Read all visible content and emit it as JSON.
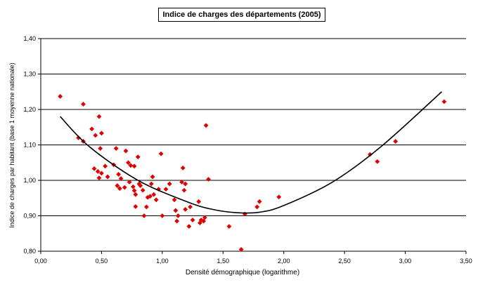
{
  "chart_data": {
    "type": "scatter",
    "title": "Indice de charges des départements (2005)",
    "xlabel": "Densité démographique (logarithme)",
    "ylabel": "Indice de charges par habitant (base 1 moyenne nationale)",
    "xlim": [
      0,
      3.5
    ],
    "ylim": [
      0.8,
      1.4
    ],
    "x_ticks": [
      "0,00",
      "0,50",
      "1,00",
      "1,50",
      "2,00",
      "2,50",
      "3,00",
      "3,50"
    ],
    "y_ticks": [
      "0,80",
      "0,90",
      "1,00",
      "1,10",
      "1,20",
      "1,30",
      "1,40"
    ],
    "grid": "horizontal",
    "point_color": "#e00000",
    "trend_color": "#000000",
    "trend_type": "polynomial (order 2)",
    "trend_range": [
      0.16,
      3.3
    ],
    "trend": [
      [
        0.16,
        1.18
      ],
      [
        0.4,
        1.095
      ],
      [
        0.8,
        1.0
      ],
      [
        1.2,
        0.94
      ],
      [
        1.4,
        0.919
      ],
      [
        1.6,
        0.909
      ],
      [
        1.8,
        0.91
      ],
      [
        2.0,
        0.929
      ],
      [
        2.4,
        0.995
      ],
      [
        2.8,
        1.095
      ],
      [
        3.3,
        1.25
      ]
    ],
    "points": [
      [
        0.16,
        1.237
      ],
      [
        0.35,
        1.215
      ],
      [
        0.31,
        1.12
      ],
      [
        0.35,
        1.11
      ],
      [
        0.42,
        1.145
      ],
      [
        0.45,
        1.127
      ],
      [
        0.48,
        1.18
      ],
      [
        0.5,
        1.133
      ],
      [
        0.49,
        1.09
      ],
      [
        0.44,
        1.033
      ],
      [
        0.47,
        1.025
      ],
      [
        0.5,
        1.02
      ],
      [
        0.53,
        1.04
      ],
      [
        0.48,
        1.007
      ],
      [
        0.55,
        1.01
      ],
      [
        0.6,
        1.044
      ],
      [
        0.62,
        1.09
      ],
      [
        0.64,
        1.017
      ],
      [
        0.66,
        1.005
      ],
      [
        0.63,
        0.985
      ],
      [
        0.65,
        0.977
      ],
      [
        0.69,
        0.98
      ],
      [
        0.7,
        1.083
      ],
      [
        0.72,
        1.05
      ],
      [
        0.74,
        1.042
      ],
      [
        0.77,
        1.04
      ],
      [
        0.73,
        0.995
      ],
      [
        0.76,
        0.982
      ],
      [
        0.77,
        0.971
      ],
      [
        0.78,
        0.96
      ],
      [
        0.78,
        0.926
      ],
      [
        0.8,
        1.066
      ],
      [
        0.81,
        0.99
      ],
      [
        0.82,
        0.985
      ],
      [
        0.84,
        0.972
      ],
      [
        0.85,
        0.9
      ],
      [
        0.87,
        0.925
      ],
      [
        0.88,
        0.952
      ],
      [
        0.9,
        0.955
      ],
      [
        0.91,
        0.99
      ],
      [
        0.92,
        1.01
      ],
      [
        0.93,
        0.96
      ],
      [
        0.95,
        0.945
      ],
      [
        0.97,
        0.975
      ],
      [
        0.99,
        1.075
      ],
      [
        1.0,
        0.9
      ],
      [
        1.03,
        0.975
      ],
      [
        1.06,
        0.99
      ],
      [
        1.1,
        0.945
      ],
      [
        1.11,
        0.915
      ],
      [
        1.12,
        0.885
      ],
      [
        1.13,
        0.9
      ],
      [
        1.16,
        0.995
      ],
      [
        1.17,
        1.035
      ],
      [
        1.18,
        0.972
      ],
      [
        1.19,
        0.99
      ],
      [
        1.19,
        0.918
      ],
      [
        1.22,
        0.87
      ],
      [
        1.23,
        0.925
      ],
      [
        1.25,
        0.888
      ],
      [
        1.3,
        0.94
      ],
      [
        1.31,
        0.88
      ],
      [
        1.32,
        0.888
      ],
      [
        1.34,
        0.885
      ],
      [
        1.35,
        0.895
      ],
      [
        1.36,
        1.155
      ],
      [
        1.38,
        1.003
      ],
      [
        1.55,
        0.87
      ],
      [
        1.65,
        0.805
      ],
      [
        1.68,
        0.905
      ],
      [
        1.78,
        0.925
      ],
      [
        1.8,
        0.94
      ],
      [
        1.96,
        0.953
      ],
      [
        2.71,
        1.073
      ],
      [
        2.77,
        1.053
      ],
      [
        2.92,
        1.11
      ],
      [
        3.32,
        1.222
      ]
    ]
  }
}
